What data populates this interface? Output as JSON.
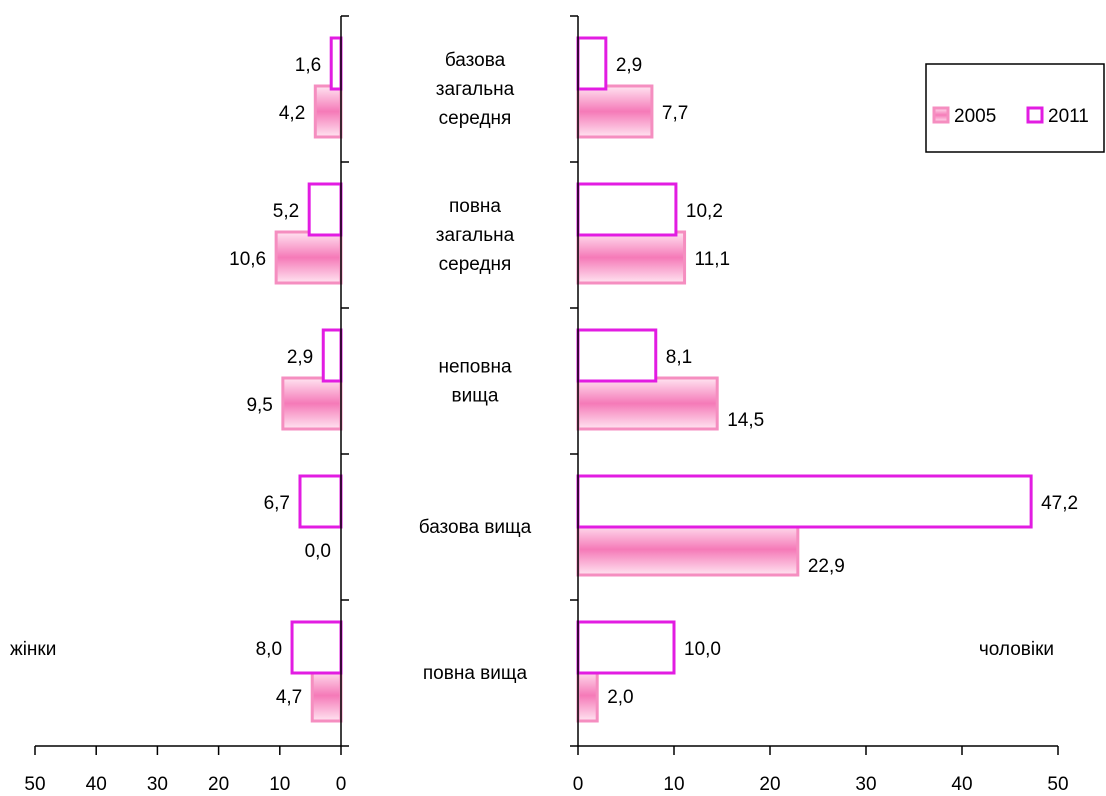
{
  "chart_data": {
    "type": "bar",
    "orientation": "horizontal",
    "layout": "back-to-back",
    "categories": [
      [
        "базова",
        "загальна",
        "середня"
      ],
      [
        "повна",
        "загальна",
        "середня"
      ],
      [
        "неповна",
        "вища"
      ],
      [
        "базова вища"
      ],
      [
        "повна вища"
      ]
    ],
    "panels": [
      {
        "side": "left",
        "label": "жінки",
        "series": [
          {
            "name": "2005",
            "values": [
              4.2,
              10.6,
              9.5,
              0.0,
              4.7
            ],
            "labels": [
              "4,2",
              "10,6",
              "9,5",
              "0,0",
              "4,7"
            ]
          },
          {
            "name": "2011",
            "values": [
              1.6,
              5.2,
              2.9,
              6.7,
              8.0
            ],
            "labels": [
              "1,6",
              "5,2",
              "2,9",
              "6,7",
              "8,0"
            ]
          }
        ],
        "xlim": [
          0,
          50
        ],
        "ticks": [
          "50",
          "40",
          "30",
          "20",
          "10",
          "0"
        ],
        "reversed": true
      },
      {
        "side": "right",
        "label": "чоловіки",
        "series": [
          {
            "name": "2005",
            "values": [
              7.7,
              11.1,
              14.5,
              22.9,
              2.0
            ],
            "labels": [
              "7,7",
              "11,1",
              "14,5",
              "22,9",
              "2,0"
            ]
          },
          {
            "name": "2011",
            "values": [
              2.9,
              10.2,
              8.1,
              47.2,
              10.0
            ],
            "labels": [
              "2,9",
              "10,2",
              "8,1",
              "47,2",
              "10,0"
            ]
          }
        ],
        "xlim": [
          0,
          50
        ],
        "ticks": [
          "0",
          "10",
          "20",
          "30",
          "40",
          "50"
        ],
        "reversed": false
      }
    ],
    "legend": {
      "position": "top-right",
      "entries": [
        {
          "name": "2005",
          "style": "pink-gradient-fill",
          "color": "#f27ab4"
        },
        {
          "name": "2011",
          "style": "magenta-outline",
          "color": "#e21ce2"
        }
      ]
    },
    "colors": {
      "fill_2005_stroke": "#f58ec0",
      "fill_2005_center": "#f57ab8",
      "fill_2005_edge": "#ffe4f1",
      "stroke_2011": "#e21ce2",
      "axis": "#000000"
    }
  }
}
